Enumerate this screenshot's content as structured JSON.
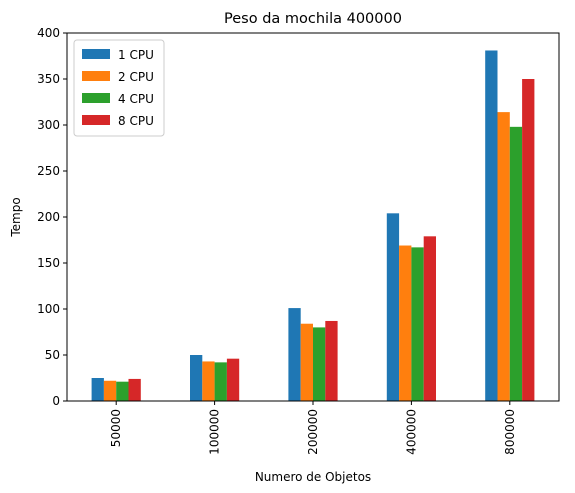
{
  "chart_data": {
    "type": "bar",
    "title": "Peso da mochila 400000",
    "xlabel": "Numero de Objetos",
    "ylabel": "Tempo",
    "categories": [
      "50000",
      "100000",
      "200000",
      "400000",
      "800000"
    ],
    "series": [
      {
        "name": "1 CPU",
        "color": "#1f77b4",
        "values": [
          25,
          50,
          101,
          204,
          381
        ]
      },
      {
        "name": "2 CPU",
        "color": "#ff7f0e",
        "values": [
          22,
          43,
          84,
          169,
          314
        ]
      },
      {
        "name": "4 CPU",
        "color": "#2ca02c",
        "values": [
          21,
          42,
          80,
          167,
          298
        ]
      },
      {
        "name": "8 CPU",
        "color": "#d62728",
        "values": [
          24,
          46,
          87,
          179,
          350
        ]
      }
    ],
    "ylim": [
      0,
      400
    ],
    "yticks": [
      0,
      50,
      100,
      150,
      200,
      250,
      300,
      350,
      400
    ],
    "grid": false,
    "legend": "top-left"
  }
}
